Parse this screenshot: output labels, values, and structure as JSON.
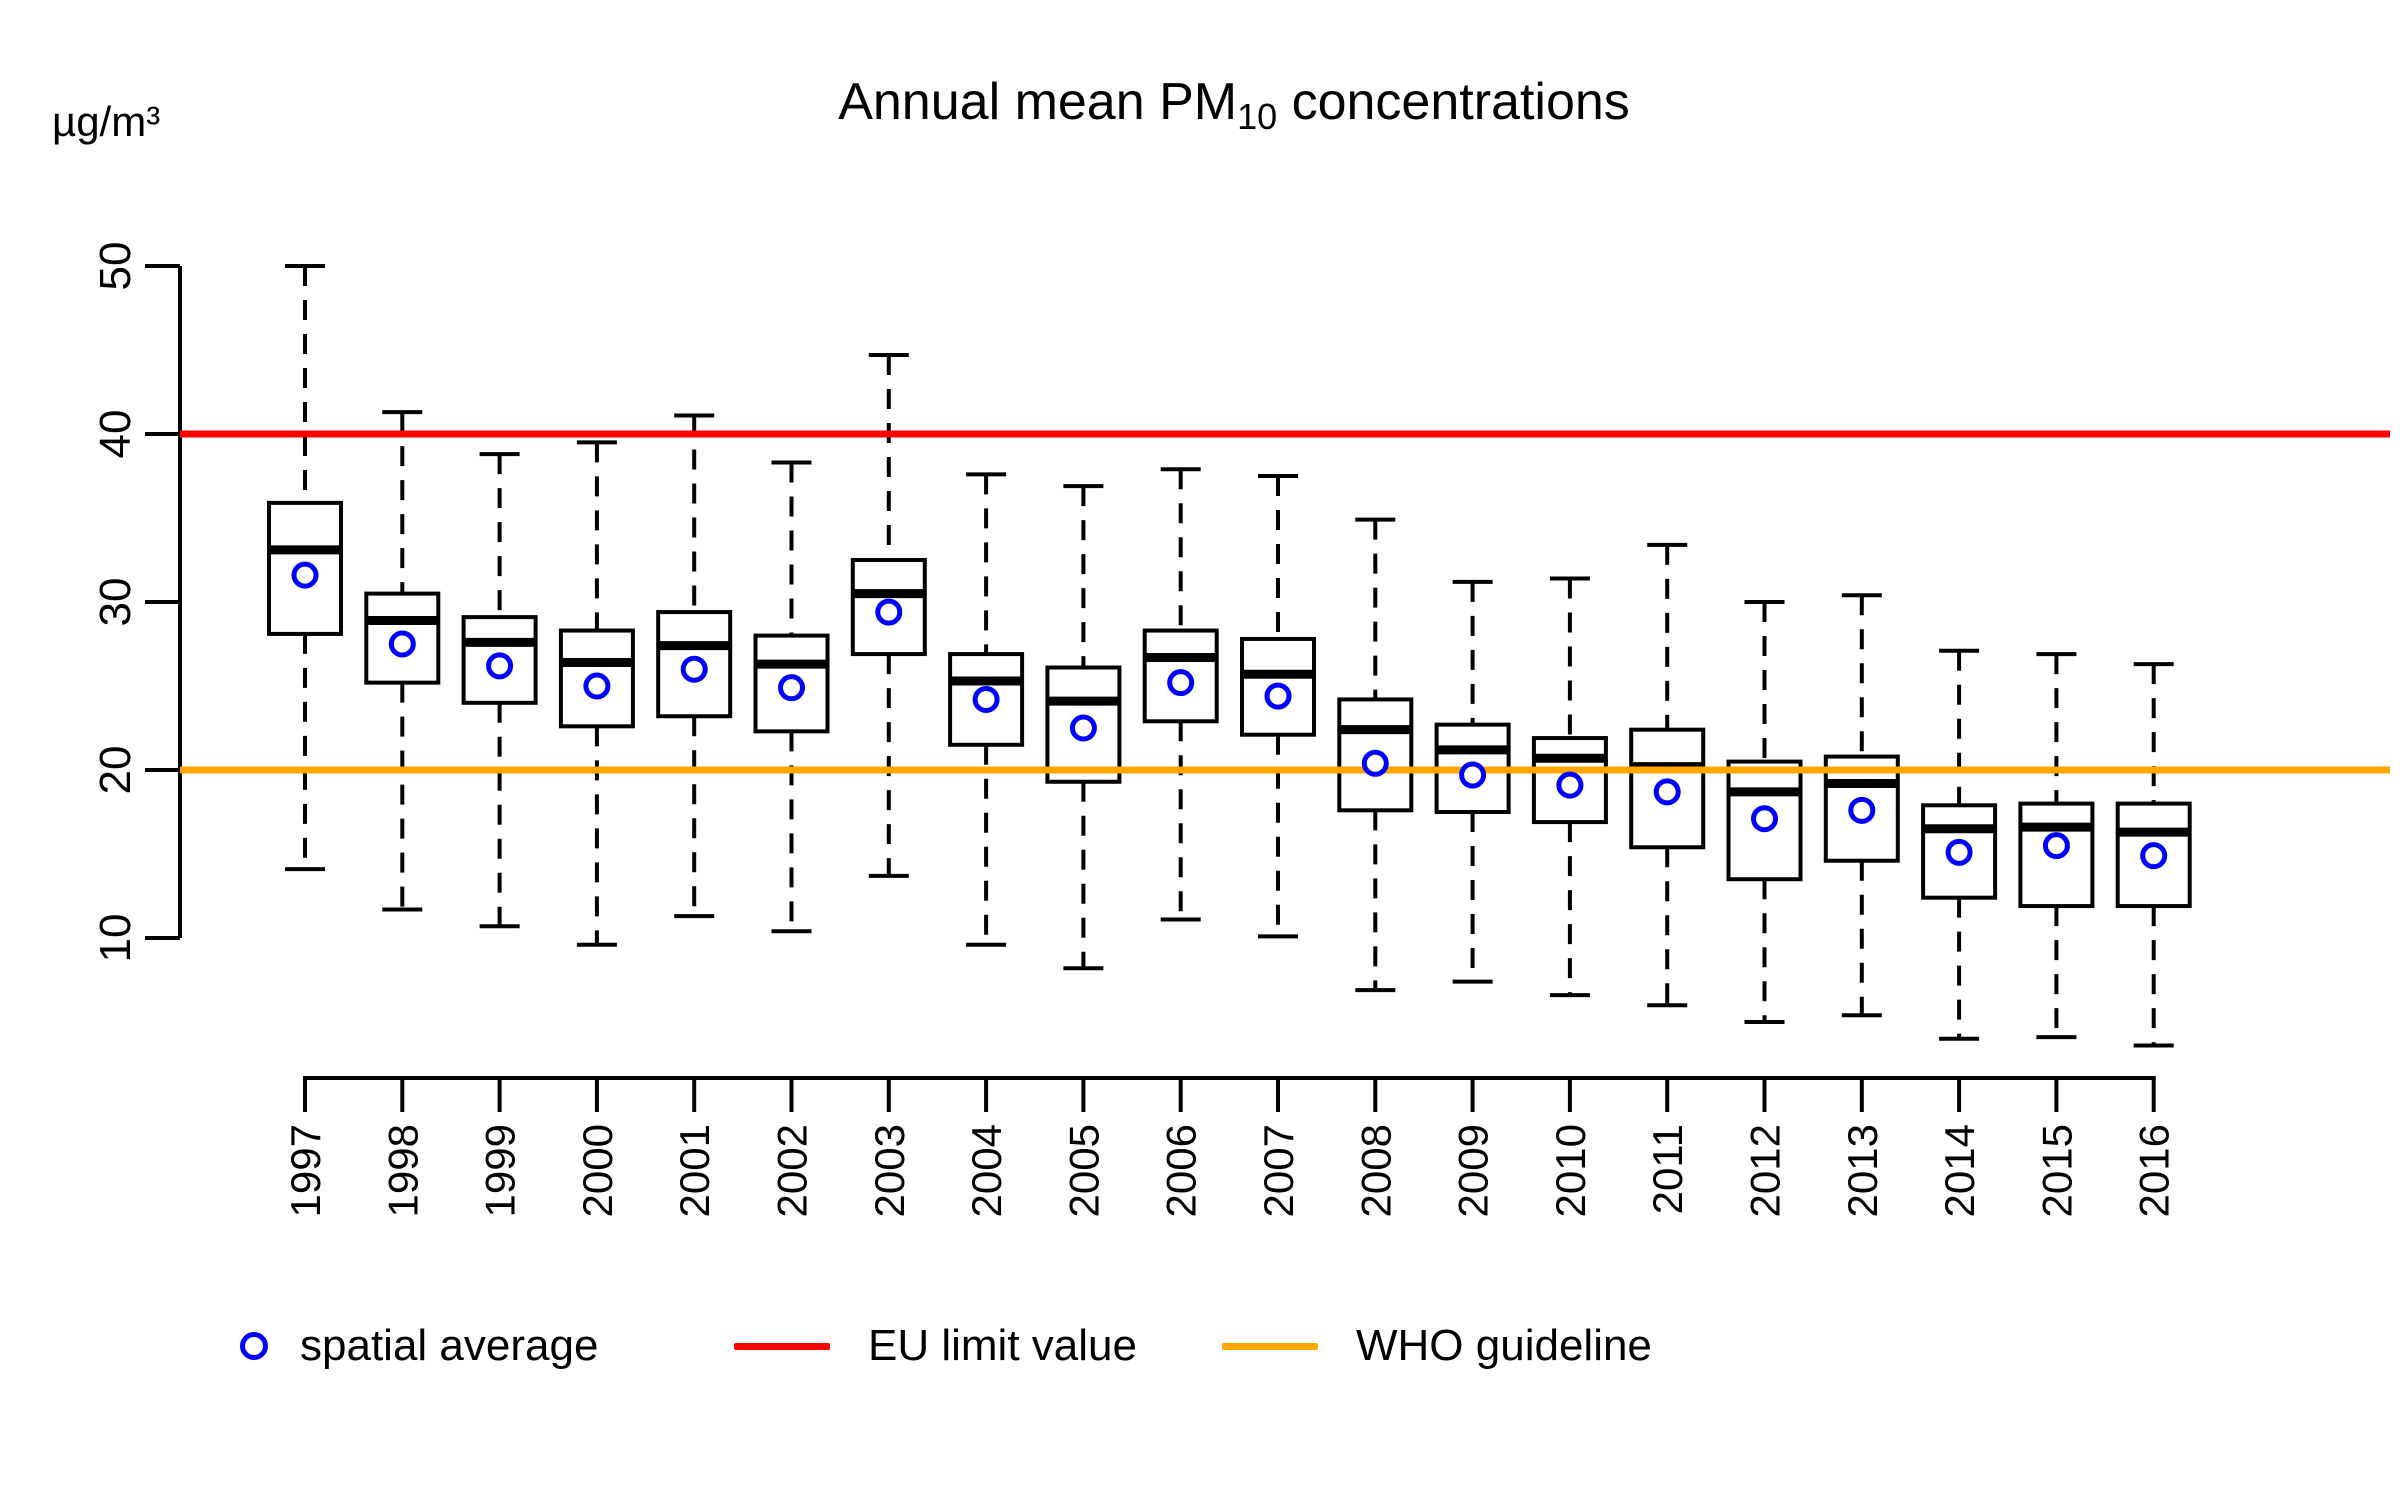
{
  "title": {
    "prefix": "Annual mean PM",
    "subscript": "10",
    "suffix": " concentrations"
  },
  "y_axis": {
    "unit_label": "µg/m³",
    "ticks": [
      10,
      20,
      30,
      40,
      50
    ]
  },
  "colors": {
    "mean_marker": "#0000ff",
    "eu_limit": "#ff0000",
    "who_guideline": "#ffa500",
    "box_stroke": "#000000",
    "box_fill": "#ffffff",
    "background": "#ffffff"
  },
  "legend": [
    {
      "label": "spatial average",
      "symbol": "circle",
      "color": "#0000ff"
    },
    {
      "label": "EU limit value",
      "symbol": "line",
      "color": "#ff0000"
    },
    {
      "label": "WHO guideline",
      "symbol": "line",
      "color": "#ffa500"
    }
  ],
  "chart_data": {
    "type": "boxplot",
    "title": "Annual mean PM10 concentrations",
    "ylabel": "µg/m³",
    "ylim": [
      10,
      50
    ],
    "y_ticks": [
      10,
      20,
      30,
      40,
      50
    ],
    "grid": false,
    "legend_position": "bottom",
    "categories": [
      "1997",
      "1998",
      "1999",
      "2000",
      "2001",
      "2002",
      "2003",
      "2004",
      "2005",
      "2006",
      "2007",
      "2008",
      "2009",
      "2010",
      "2011",
      "2012",
      "2013",
      "2014",
      "2015",
      "2016"
    ],
    "reference_lines": [
      {
        "name": "EU limit value",
        "value": 40,
        "color": "#ff0000"
      },
      {
        "name": "WHO guideline",
        "value": 20,
        "color": "#ffa500"
      }
    ],
    "boxes": [
      {
        "year": "1997",
        "min": 14.1,
        "q1": 28.1,
        "median": 33.1,
        "q3": 35.9,
        "max": 50.0,
        "mean": 31.6
      },
      {
        "year": "1998",
        "min": 11.7,
        "q1": 25.2,
        "median": 28.9,
        "q3": 30.5,
        "max": 41.3,
        "mean": 27.5
      },
      {
        "year": "1999",
        "min": 10.7,
        "q1": 24.0,
        "median": 27.6,
        "q3": 29.1,
        "max": 38.8,
        "mean": 26.2
      },
      {
        "year": "2000",
        "min": 9.6,
        "q1": 22.6,
        "median": 26.4,
        "q3": 28.3,
        "max": 39.5,
        "mean": 25.0
      },
      {
        "year": "2001",
        "min": 11.3,
        "q1": 23.2,
        "median": 27.4,
        "q3": 29.4,
        "max": 41.1,
        "mean": 26.0
      },
      {
        "year": "2002",
        "min": 10.4,
        "q1": 22.3,
        "median": 26.3,
        "q3": 28.0,
        "max": 38.3,
        "mean": 24.9
      },
      {
        "year": "2003",
        "min": 13.7,
        "q1": 26.9,
        "median": 30.5,
        "q3": 32.5,
        "max": 44.7,
        "mean": 29.4
      },
      {
        "year": "2004",
        "min": 9.6,
        "q1": 21.5,
        "median": 25.3,
        "q3": 26.9,
        "max": 37.6,
        "mean": 24.2
      },
      {
        "year": "2005",
        "min": 8.2,
        "q1": 19.3,
        "median": 24.1,
        "q3": 26.1,
        "max": 36.9,
        "mean": 22.5
      },
      {
        "year": "2006",
        "min": 11.1,
        "q1": 22.9,
        "median": 26.7,
        "q3": 28.3,
        "max": 37.9,
        "mean": 25.2
      },
      {
        "year": "2007",
        "min": 10.1,
        "q1": 22.1,
        "median": 25.7,
        "q3": 27.8,
        "max": 37.5,
        "mean": 24.4
      },
      {
        "year": "2008",
        "min": 6.9,
        "q1": 17.6,
        "median": 22.4,
        "q3": 24.2,
        "max": 34.9,
        "mean": 20.4
      },
      {
        "year": "2009",
        "min": 7.4,
        "q1": 17.5,
        "median": 21.2,
        "q3": 22.7,
        "max": 31.2,
        "mean": 19.7
      },
      {
        "year": "2010",
        "min": 6.6,
        "q1": 16.9,
        "median": 20.7,
        "q3": 21.9,
        "max": 31.4,
        "mean": 19.1
      },
      {
        "year": "2011",
        "min": 6.0,
        "q1": 15.4,
        "median": 20.2,
        "q3": 22.4,
        "max": 33.4,
        "mean": 18.7
      },
      {
        "year": "2012",
        "min": 5.0,
        "q1": 13.5,
        "median": 18.7,
        "q3": 20.5,
        "max": 30.0,
        "mean": 17.1
      },
      {
        "year": "2013",
        "min": 5.4,
        "q1": 14.6,
        "median": 19.2,
        "q3": 20.8,
        "max": 30.4,
        "mean": 17.6
      },
      {
        "year": "2014",
        "min": 4.0,
        "q1": 12.4,
        "median": 16.5,
        "q3": 17.9,
        "max": 27.1,
        "mean": 15.1
      },
      {
        "year": "2015",
        "min": 4.1,
        "q1": 11.9,
        "median": 16.6,
        "q3": 18.0,
        "max": 26.9,
        "mean": 15.5
      },
      {
        "year": "2016",
        "min": 3.6,
        "q1": 11.9,
        "median": 16.3,
        "q3": 18.0,
        "max": 26.3,
        "mean": 14.9
      }
    ]
  }
}
